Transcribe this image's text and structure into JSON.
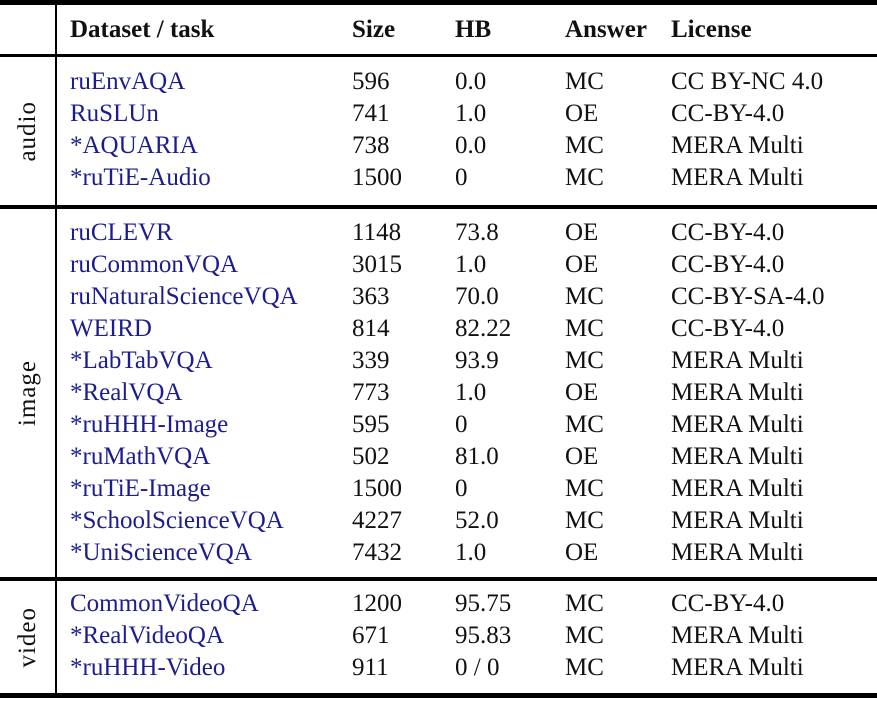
{
  "table": {
    "columns": [
      "Dataset / task",
      "Size",
      "HB",
      "Answer",
      "License"
    ],
    "colors": {
      "link": "#1c1c8e",
      "text": "#111111",
      "rule": "#000000"
    },
    "groups": [
      {
        "label": "audio",
        "rows": [
          {
            "dataset": "ruEnvAQA",
            "size": "596",
            "hb": "0.0",
            "answer": "MC",
            "license": "CC BY-NC 4.0"
          },
          {
            "dataset": "RuSLUn",
            "size": "741",
            "hb": "1.0",
            "answer": "OE",
            "license": "CC-BY-4.0"
          },
          {
            "dataset": "*AQUARIA",
            "size": "738",
            "hb": "0.0",
            "answer": "MC",
            "license": "MERA Multi"
          },
          {
            "dataset": "*ruTiE-Audio",
            "size": "1500",
            "hb": "0",
            "answer": "MC",
            "license": "MERA Multi"
          }
        ]
      },
      {
        "label": "image",
        "rows": [
          {
            "dataset": "ruCLEVR",
            "size": "1148",
            "hb": "73.8",
            "answer": "OE",
            "license": "CC-BY-4.0"
          },
          {
            "dataset": "ruCommonVQA",
            "size": "3015",
            "hb": "1.0",
            "answer": "OE",
            "license": "CC-BY-4.0"
          },
          {
            "dataset": "ruNaturalScienceVQA",
            "size": "363",
            "hb": "70.0",
            "answer": "MC",
            "license": "CC-BY-SA-4.0"
          },
          {
            "dataset": "WEIRD",
            "size": "814",
            "hb": "82.22",
            "answer": "MC",
            "license": "CC-BY-4.0"
          },
          {
            "dataset": "*LabTabVQA",
            "size": "339",
            "hb": "93.9",
            "answer": "MC",
            "license": "MERA Multi"
          },
          {
            "dataset": "*RealVQA",
            "size": "773",
            "hb": "1.0",
            "answer": "OE",
            "license": "MERA Multi"
          },
          {
            "dataset": "*ruHHH-Image",
            "size": "595",
            "hb": "0",
            "answer": "MC",
            "license": "MERA Multi"
          },
          {
            "dataset": "*ruMathVQA",
            "size": "502",
            "hb": "81.0",
            "answer": "OE",
            "license": "MERA Multi"
          },
          {
            "dataset": "*ruTiE-Image",
            "size": "1500",
            "hb": "0",
            "answer": "MC",
            "license": "MERA Multi"
          },
          {
            "dataset": "*SchoolScienceVQA",
            "size": "4227",
            "hb": "52.0",
            "answer": "MC",
            "license": "MERA Multi"
          },
          {
            "dataset": "*UniScienceVQA",
            "size": "7432",
            "hb": "1.0",
            "answer": "OE",
            "license": "MERA Multi"
          }
        ]
      },
      {
        "label": "video",
        "rows": [
          {
            "dataset": "CommonVideoQA",
            "size": "1200",
            "hb": "95.75",
            "answer": "MC",
            "license": "CC-BY-4.0"
          },
          {
            "dataset": "*RealVideoQA",
            "size": "671",
            "hb": "95.83",
            "answer": "MC",
            "license": "MERA Multi"
          },
          {
            "dataset": "*ruHHH-Video",
            "size": "911",
            "hb": "0 / 0",
            "answer": "MC",
            "license": "MERA Multi"
          }
        ]
      }
    ]
  }
}
